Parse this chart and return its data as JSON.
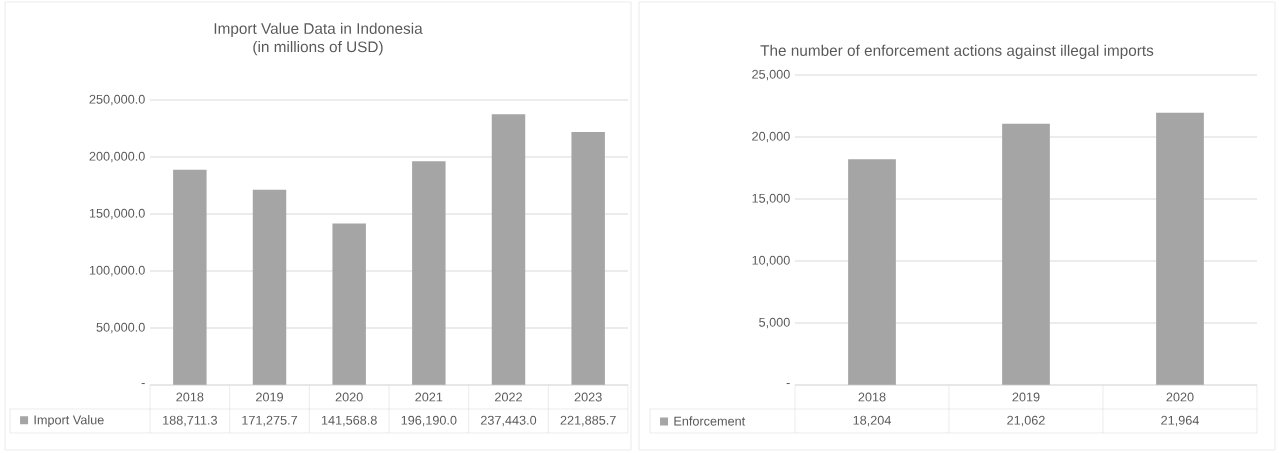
{
  "chart_data": [
    {
      "type": "bar",
      "title": "Import Value Data in Indonesia",
      "subtitle": "(in millions of USD)",
      "categories": [
        "2018",
        "2019",
        "2020",
        "2021",
        "2022",
        "2023"
      ],
      "series": [
        {
          "name": "Import Value",
          "color": "#a5a5a5",
          "values": [
            188711.3,
            171275.7,
            141568.8,
            196190.0,
            237443.0,
            221885.7
          ],
          "value_labels": [
            "188,711.3",
            "171,275.7",
            "141,568.8",
            "196,190.0",
            "237,443.0",
            "221,885.7"
          ]
        }
      ],
      "ylim": [
        0,
        250000
      ],
      "yticks": [
        {
          "value": 0,
          "label": "-"
        },
        {
          "value": 50000,
          "label": "50,000.0"
        },
        {
          "value": 100000,
          "label": "100,000.0"
        },
        {
          "value": 150000,
          "label": "150,000.0"
        },
        {
          "value": 200000,
          "label": "200,000.0"
        },
        {
          "value": 250000,
          "label": "250,000.0"
        }
      ],
      "grid": "y",
      "legend": "bottom"
    },
    {
      "type": "bar",
      "title": "The number of enforcement actions against illegal imports",
      "categories": [
        "2018",
        "2019",
        "2020"
      ],
      "series": [
        {
          "name": "Enforcement",
          "color": "#a5a5a5",
          "values": [
            18204,
            21062,
            21964
          ],
          "value_labels": [
            "18,204",
            "21,062",
            "21,964"
          ]
        }
      ],
      "ylim": [
        0,
        25000
      ],
      "yticks": [
        {
          "value": 0,
          "label": "-"
        },
        {
          "value": 5000,
          "label": "5,000"
        },
        {
          "value": 10000,
          "label": "10,000"
        },
        {
          "value": 15000,
          "label": "15,000"
        },
        {
          "value": 20000,
          "label": "20,000"
        },
        {
          "value": 25000,
          "label": "25,000"
        }
      ],
      "grid": "y",
      "legend": "bottom"
    }
  ]
}
